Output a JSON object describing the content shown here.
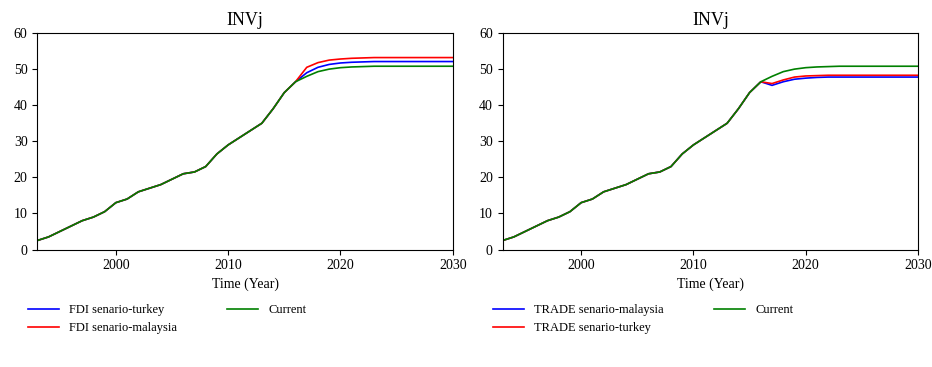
{
  "chart_data": [
    {
      "type": "line",
      "title": "INVj",
      "x_label": "Time (Year)",
      "x": [
        1993,
        1994,
        1995,
        1996,
        1997,
        1998,
        1999,
        2000,
        2001,
        2002,
        2003,
        2004,
        2005,
        2006,
        2007,
        2008,
        2009,
        2010,
        2011,
        2012,
        2013,
        2014,
        2015,
        2016,
        2017,
        2018,
        2019,
        2020,
        2021,
        2022,
        2023,
        2024,
        2025,
        2026,
        2027,
        2028,
        2029,
        2030
      ],
      "xlim": [
        1993,
        2030
      ],
      "xticks": [
        2000,
        2010,
        2020,
        2030
      ],
      "ylim": [
        0,
        60
      ],
      "yticks": [
        0,
        10,
        20,
        30,
        40,
        50,
        60
      ],
      "grid": false,
      "legend": "upper left",
      "series": [
        {
          "name": "FDI senario-turkey",
          "color": "#0000ff",
          "values": [
            2.5,
            3.5,
            5,
            6.5,
            8,
            9,
            10.5,
            13,
            14,
            16,
            17,
            18,
            19.5,
            21,
            21.5,
            23,
            26.5,
            29,
            31,
            33,
            35,
            39,
            43.5,
            46.5,
            49,
            50.5,
            51.3,
            51.7,
            51.9,
            52,
            52.1,
            52.1,
            52.1,
            52.1,
            52.1,
            52.1,
            52.1,
            52.1
          ]
        },
        {
          "name": "FDI senario-malaysia",
          "color": "#ff0000",
          "values": [
            2.5,
            3.5,
            5,
            6.5,
            8,
            9,
            10.5,
            13,
            14,
            16,
            17,
            18,
            19.5,
            21,
            21.5,
            23,
            26.5,
            29,
            31,
            33,
            35,
            39,
            43.5,
            46.5,
            50.5,
            51.8,
            52.5,
            52.8,
            53,
            53.1,
            53.2,
            53.2,
            53.2,
            53.2,
            53.2,
            53.2,
            53.2,
            53.2
          ]
        },
        {
          "name": "Current",
          "color": "#008000",
          "values": [
            2.5,
            3.5,
            5,
            6.5,
            8,
            9,
            10.5,
            13,
            14,
            16,
            17,
            18,
            19.5,
            21,
            21.5,
            23,
            26.5,
            29,
            31,
            33,
            35,
            39,
            43.5,
            46.5,
            48,
            49.3,
            50,
            50.4,
            50.6,
            50.7,
            50.8,
            50.8,
            50.8,
            50.8,
            50.8,
            50.8,
            50.8,
            50.8
          ]
        }
      ]
    },
    {
      "type": "line",
      "title": "INVj",
      "x_label": "Time (Year)",
      "x": [
        1993,
        1994,
        1995,
        1996,
        1997,
        1998,
        1999,
        2000,
        2001,
        2002,
        2003,
        2004,
        2005,
        2006,
        2007,
        2008,
        2009,
        2010,
        2011,
        2012,
        2013,
        2014,
        2015,
        2016,
        2017,
        2018,
        2019,
        2020,
        2021,
        2022,
        2023,
        2024,
        2025,
        2026,
        2027,
        2028,
        2029,
        2030
      ],
      "xlim": [
        1993,
        2030
      ],
      "xticks": [
        2000,
        2010,
        2020,
        2030
      ],
      "ylim": [
        0,
        60
      ],
      "yticks": [
        0,
        10,
        20,
        30,
        40,
        50,
        60
      ],
      "grid": false,
      "legend": "upper left",
      "series": [
        {
          "name": "TRADE senario-malaysia",
          "color": "#0000ff",
          "values": [
            2.5,
            3.5,
            5,
            6.5,
            8,
            9,
            10.5,
            13,
            14,
            16,
            17,
            18,
            19.5,
            21,
            21.5,
            23,
            26.5,
            29,
            31,
            33,
            35,
            39,
            43.5,
            46.5,
            45.5,
            46.5,
            47.2,
            47.5,
            47.7,
            47.8,
            47.8,
            47.8,
            47.8,
            47.8,
            47.8,
            47.8,
            47.8,
            47.8
          ]
        },
        {
          "name": "TRADE senario-turkey",
          "color": "#ff0000",
          "values": [
            2.5,
            3.5,
            5,
            6.5,
            8,
            9,
            10.5,
            13,
            14,
            16,
            17,
            18,
            19.5,
            21,
            21.5,
            23,
            26.5,
            29,
            31,
            33,
            35,
            39,
            43.5,
            46.5,
            46,
            47,
            47.8,
            48.1,
            48.2,
            48.3,
            48.3,
            48.3,
            48.3,
            48.3,
            48.3,
            48.3,
            48.3,
            48.3
          ]
        },
        {
          "name": "Current",
          "color": "#008000",
          "values": [
            2.5,
            3.5,
            5,
            6.5,
            8,
            9,
            10.5,
            13,
            14,
            16,
            17,
            18,
            19.5,
            21,
            21.5,
            23,
            26.5,
            29,
            31,
            33,
            35,
            39,
            43.5,
            46.5,
            48,
            49.3,
            50,
            50.4,
            50.6,
            50.7,
            50.8,
            50.8,
            50.8,
            50.8,
            50.8,
            50.8,
            50.8,
            50.8
          ]
        }
      ]
    }
  ]
}
